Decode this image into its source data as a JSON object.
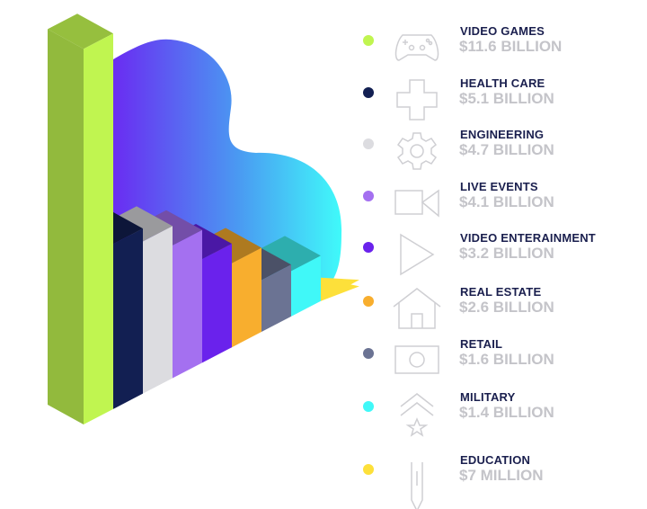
{
  "chart_data": {
    "type": "bar",
    "style": "isometric-3d",
    "unit": "billion USD",
    "categories": [
      "VIDEO GAMES",
      "HEALTH CARE",
      "ENGINEERING",
      "LIVE EVENTS",
      "VIDEO ENTERAINMENT",
      "REAL ESTATE",
      "RETAIL",
      "MILITARY",
      "EDUCATION"
    ],
    "values": [
      11.6,
      5.1,
      4.7,
      4.1,
      3.2,
      2.6,
      1.6,
      1.4,
      0.007
    ],
    "value_labels": [
      "$11.6 BILLION",
      "$5.1 BILLION",
      "$4.7 BILLION",
      "$4.1 BILLION",
      "$3.2 BILLION",
      "$2.6 BILLION",
      "$1.6 BILLION",
      "$1.4 BILLION",
      "$7 MILLION"
    ],
    "colors": [
      "#c0f550",
      "#121f52",
      "#dcdce0",
      "#a470f0",
      "#6a22ec",
      "#f8ae2e",
      "#6b7393",
      "#40f8f8",
      "#fde03a"
    ],
    "icons": [
      "gamepad-icon",
      "medical-cross-icon",
      "gear-icon",
      "video-camera-icon",
      "play-icon",
      "house-icon",
      "banknote-icon",
      "military-rank-icon",
      "pencil-icon"
    ],
    "legend": "right",
    "grid": false
  }
}
